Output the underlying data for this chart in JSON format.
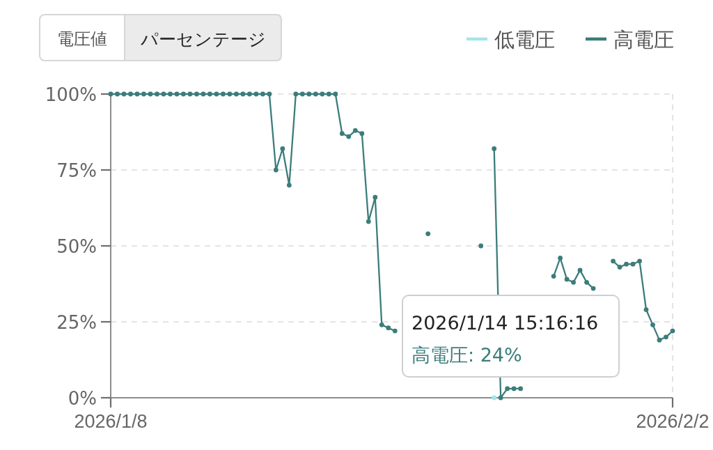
{
  "chart_data": {
    "type": "line",
    "categories": [
      "2026/1/8",
      null,
      null,
      null,
      null,
      null,
      null,
      null,
      null,
      null,
      null,
      null,
      null,
      null,
      null,
      null,
      null,
      null,
      null,
      null,
      null,
      null,
      null,
      null,
      null,
      null,
      null,
      null,
      null,
      null,
      null,
      null,
      null,
      null,
      null,
      null,
      null,
      null,
      null,
      null,
      null,
      null,
      null,
      null,
      null,
      null,
      null,
      null,
      null,
      null,
      null,
      null,
      null,
      null,
      null,
      null,
      null,
      null,
      null,
      null,
      null,
      null,
      null,
      null,
      null,
      null,
      null,
      null,
      null,
      null,
      null,
      null,
      null,
      null,
      null,
      null,
      null,
      null,
      null,
      null,
      null,
      null,
      null,
      null,
      null,
      "2026/2/2"
    ],
    "series": [
      {
        "name": "低電圧",
        "color": "#a5e4ea",
        "values": [
          null,
          null,
          null,
          null,
          null,
          null,
          null,
          null,
          null,
          null,
          null,
          null,
          null,
          null,
          null,
          null,
          null,
          null,
          null,
          null,
          null,
          null,
          null,
          null,
          null,
          null,
          null,
          null,
          null,
          null,
          null,
          null,
          null,
          null,
          null,
          null,
          null,
          null,
          null,
          null,
          null,
          null,
          null,
          null,
          null,
          null,
          null,
          null,
          null,
          null,
          null,
          null,
          null,
          null,
          null,
          null,
          null,
          null,
          0,
          null,
          null,
          null,
          null,
          null,
          null,
          null,
          null,
          null,
          null,
          null,
          null,
          null,
          null,
          null,
          null,
          null,
          null,
          null,
          null,
          null,
          null,
          null,
          null,
          null,
          null,
          null
        ]
      },
      {
        "name": "高電圧",
        "color": "#3b7d7b",
        "values": [
          100,
          100,
          100,
          100,
          100,
          100,
          100,
          100,
          100,
          100,
          100,
          100,
          100,
          100,
          100,
          100,
          100,
          100,
          100,
          100,
          100,
          100,
          100,
          100,
          100,
          75,
          82,
          70,
          100,
          100,
          100,
          100,
          100,
          100,
          100,
          87,
          86,
          88,
          87,
          58,
          66,
          24,
          23,
          22,
          null,
          null,
          null,
          null,
          54,
          null,
          null,
          null,
          null,
          null,
          null,
          null,
          50,
          null,
          82,
          0,
          3,
          3,
          3,
          null,
          null,
          null,
          null,
          40,
          46,
          39,
          38,
          42,
          38,
          36,
          null,
          null,
          45,
          43,
          44,
          44,
          45,
          29,
          24,
          19,
          20,
          22
        ]
      }
    ],
    "ylim": [
      0,
      100
    ],
    "yticks": [
      {
        "value": 0,
        "label": "0%"
      },
      {
        "value": 25,
        "label": "25%"
      },
      {
        "value": 50,
        "label": "50%"
      },
      {
        "value": 75,
        "label": "75%"
      },
      {
        "value": 100,
        "label": "100%"
      }
    ],
    "grid": true,
    "legend": "top right",
    "marker": "circle",
    "line_style": "solid",
    "annotations": [
      "電圧値",
      "パーセンテージ",
      "2026/1/14 15:16:16",
      "高電圧: 24%"
    ]
  }
}
